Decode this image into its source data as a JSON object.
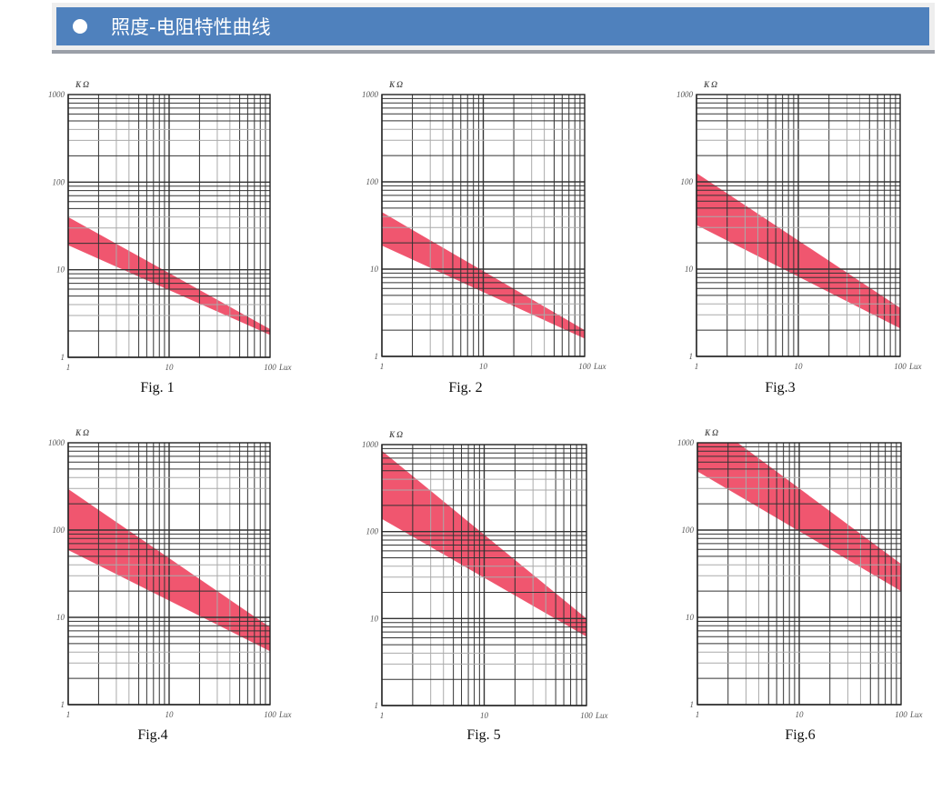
{
  "header": {
    "title": "照度-电阻特性曲线",
    "bullet_icon": "circle-bullet",
    "color": "#4f81bd"
  },
  "chart_data": [
    {
      "type": "area",
      "caption": "Fig. 1",
      "xlabel": "Lux",
      "ylabel": "K Ω",
      "xscale": "log",
      "yscale": "log",
      "xlim": [
        1,
        100
      ],
      "ylim": [
        1,
        1000
      ],
      "xticks": [
        "1",
        "10",
        "100"
      ],
      "yticks": [
        "1000",
        "100",
        "10",
        "1"
      ],
      "grid": true,
      "band_color": "#f0566f",
      "x": [
        1,
        100
      ],
      "upper": [
        40,
        2.1
      ],
      "lower": [
        19,
        1.8
      ]
    },
    {
      "type": "area",
      "caption": "Fig. 2",
      "xlabel": "Lux",
      "ylabel": "K Ω",
      "xscale": "log",
      "yscale": "log",
      "xlim": [
        1,
        100
      ],
      "ylim": [
        1,
        1000
      ],
      "xticks": [
        "1",
        "10",
        "100"
      ],
      "yticks": [
        "1000",
        "100",
        "10",
        "1"
      ],
      "grid": true,
      "band_color": "#f0566f",
      "x": [
        1,
        100
      ],
      "upper": [
        45,
        2.0
      ],
      "lower": [
        18.6,
        1.6
      ]
    },
    {
      "type": "area",
      "caption": "Fig.3",
      "xlabel": "Lux",
      "ylabel": "K Ω",
      "xscale": "log",
      "yscale": "log",
      "xlim": [
        1,
        100
      ],
      "ylim": [
        1,
        1000
      ],
      "xticks": [
        "1",
        "10",
        "100"
      ],
      "yticks": [
        "1000",
        "100",
        "10",
        "1"
      ],
      "grid": true,
      "band_color": "#f0566f",
      "x": [
        1,
        100
      ],
      "upper": [
        126,
        3.6
      ],
      "lower": [
        32,
        2.1
      ]
    },
    {
      "type": "area",
      "caption": "Fig.4",
      "xlabel": "Lux",
      "ylabel": "K Ω",
      "xscale": "log",
      "yscale": "log",
      "xlim": [
        1,
        100
      ],
      "ylim": [
        1,
        1000
      ],
      "xticks": [
        "1",
        "10",
        "100"
      ],
      "yticks": [
        "1000",
        "100",
        "10",
        "1"
      ],
      "grid": true,
      "band_color": "#f0566f",
      "x": [
        1,
        100
      ],
      "upper": [
        295,
        7.7
      ],
      "lower": [
        59,
        4.1
      ]
    },
    {
      "type": "area",
      "caption": "Fig. 5",
      "xlabel": "Lux",
      "ylabel": "K Ω",
      "xscale": "log",
      "yscale": "log",
      "xlim": [
        1,
        100
      ],
      "ylim": [
        1,
        1000
      ],
      "xticks": [
        "1",
        "10",
        "100"
      ],
      "yticks": [
        "1000",
        "100",
        "10",
        "1"
      ],
      "grid": true,
      "band_color": "#f0566f",
      "x": [
        1,
        100
      ],
      "upper": [
        850,
        10
      ],
      "lower": [
        140,
        6.2
      ]
    },
    {
      "type": "area",
      "caption": "Fig.6",
      "xlabel": "Lux",
      "ylabel": "K Ω",
      "xscale": "log",
      "yscale": "log",
      "xlim": [
        1,
        100
      ],
      "ylim": [
        1,
        1000
      ],
      "xticks": [
        "1",
        "10",
        "100"
      ],
      "yticks": [
        "1000",
        "100",
        "10",
        "1"
      ],
      "grid": true,
      "band_color": "#f0566f",
      "x": [
        1,
        100
      ],
      "upper": [
        2200,
        41
      ],
      "lower": [
        470,
        20
      ]
    }
  ]
}
